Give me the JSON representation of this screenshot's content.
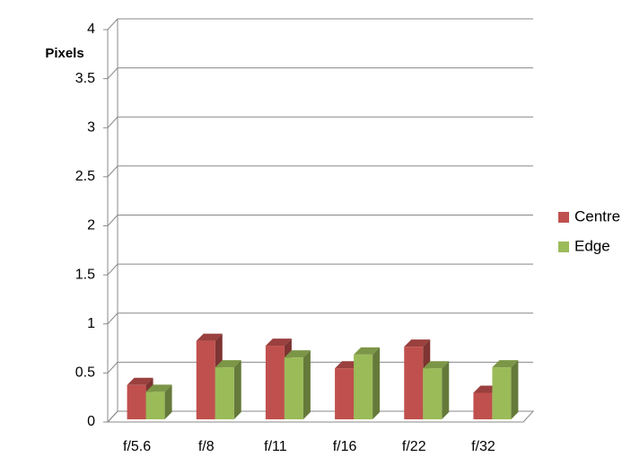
{
  "chart_data": {
    "type": "bar3d",
    "y_label": "Pixels",
    "categories": [
      "f/5.6",
      "f/8",
      "f/11",
      "f/16",
      "f/22",
      "f/32"
    ],
    "series": [
      {
        "name": "Centre",
        "color": "#c0504d",
        "values": [
          0.35,
          0.8,
          0.75,
          0.52,
          0.74,
          0.27
        ]
      },
      {
        "name": "Edge",
        "color": "#9bbb59",
        "values": [
          0.28,
          0.53,
          0.63,
          0.66,
          0.52,
          0.53
        ]
      }
    ],
    "ylim": [
      0,
      4
    ],
    "yticks": [
      0,
      0.5,
      1,
      1.5,
      2,
      2.5,
      3,
      3.5,
      4
    ],
    "grid": true,
    "legend": "right"
  }
}
